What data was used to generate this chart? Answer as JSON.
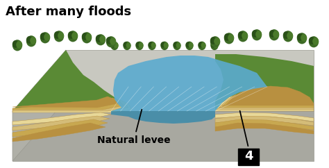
{
  "title": "After many floods",
  "title_fontsize": 13,
  "label_levee": "Natural levee",
  "label_levee_fontsize": 10,
  "bg_color": "#ffffff",
  "ground_top_color": "#c8c8c0",
  "ground_side_color": "#b0b0a8",
  "ground_front_color": "#a8a8a0",
  "grass_color": "#5a8a35",
  "grass_dark": "#3d6520",
  "grass_back": "#7aaa45",
  "sediment_colors": [
    "#e8d898",
    "#d4bc78",
    "#c8a850",
    "#b89040",
    "#e0cc88"
  ],
  "water_color": "#5aabcf",
  "water_dark": "#3a8aaa",
  "tree_colors": [
    "#2a5018",
    "#3d6a25",
    "#4a7a2a",
    "#558035"
  ],
  "label_color": "#000000"
}
